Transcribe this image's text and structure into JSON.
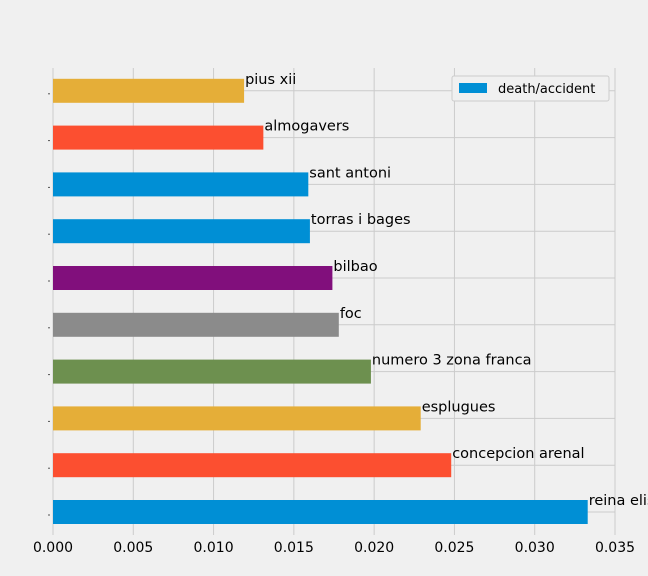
{
  "chart_data": {
    "type": "bar",
    "orientation": "horizontal",
    "title": "",
    "xlabel": "",
    "ylabel": "",
    "xlim": [
      0,
      0.035
    ],
    "xticks": [
      "0.000",
      "0.005",
      "0.010",
      "0.015",
      "0.020",
      "0.025",
      "0.030",
      "0.035"
    ],
    "grid": true,
    "legend": {
      "position": "top-right",
      "entries": [
        "death/accident"
      ]
    },
    "series": [
      {
        "name": "death/accident",
        "categories": [
          "reina elisenda",
          "concepcion arenal",
          "esplugues",
          "numero 3 zona franca",
          "foc",
          "bilbao",
          "torras i bages",
          "sant antoni",
          "almogavers",
          "pius xii"
        ],
        "values": [
          0.0333,
          0.0248,
          0.0229,
          0.0198,
          0.0178,
          0.0174,
          0.016,
          0.0159,
          0.0131,
          0.0119
        ],
        "colors": [
          "#008fd5",
          "#fc4f30",
          "#e5ae38",
          "#6d904f",
          "#8b8b8b",
          "#810f7c",
          "#008fd5",
          "#008fd5",
          "#fc4f30",
          "#e5ae38"
        ]
      }
    ]
  }
}
